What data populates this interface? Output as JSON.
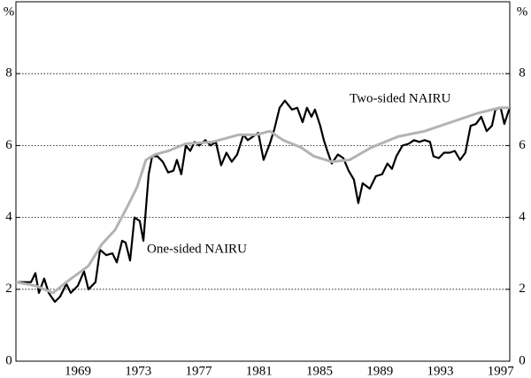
{
  "chart_data": {
    "type": "line",
    "y_unit": "%",
    "xlim": [
      1965.4,
      1998.1
    ],
    "ylim": [
      0,
      10
    ],
    "yticks": [
      0,
      2,
      4,
      6,
      8
    ],
    "xticks": [
      {
        "value": 1969.5,
        "label": "1969"
      },
      {
        "value": 1973.5,
        "label": "1973"
      },
      {
        "value": 1977.5,
        "label": "1977"
      },
      {
        "value": 1981.5,
        "label": "1981"
      },
      {
        "value": 1985.5,
        "label": "1985"
      },
      {
        "value": 1989.5,
        "label": "1989"
      },
      {
        "value": 1993.5,
        "label": "1993"
      },
      {
        "value": 1997.5,
        "label": "1997"
      }
    ],
    "grid": true,
    "annotations": [
      "Two-sided NAIRU",
      "One-sided NAIRU"
    ],
    "series": [
      {
        "color": "#000000",
        "x": [
          1965.4,
          1966.4,
          1966.69,
          1966.92,
          1967.27,
          1967.57,
          1967.98,
          1968.33,
          1968.74,
          1969.03,
          1969.5,
          1969.91,
          1970.2,
          1970.67,
          1970.97,
          1971.38,
          1971.79,
          1972.08,
          1972.43,
          1972.66,
          1972.96,
          1973.25,
          1973.6,
          1973.84,
          1974.19,
          1974.42,
          1974.77,
          1975.12,
          1975.48,
          1975.83,
          1976.06,
          1976.35,
          1976.65,
          1976.94,
          1977.23,
          1977.53,
          1977.94,
          1978.29,
          1978.64,
          1978.99,
          1979.34,
          1979.69,
          1980.05,
          1980.46,
          1980.75,
          1981.1,
          1981.45,
          1981.8,
          1982.21,
          1982.51,
          1982.86,
          1983.21,
          1983.68,
          1984.03,
          1984.38,
          1984.67,
          1984.97,
          1985.2,
          1985.55,
          1985.79,
          1986.02,
          1986.31,
          1986.72,
          1987.08,
          1987.43,
          1987.78,
          1988.07,
          1988.36,
          1988.83,
          1989.24,
          1989.65,
          1990.0,
          1990.3,
          1990.59,
          1991.0,
          1991.41,
          1991.76,
          1992.11,
          1992.46,
          1992.82,
          1993.05,
          1993.4,
          1993.75,
          1994.11,
          1994.46,
          1994.81,
          1995.16,
          1995.51,
          1995.86,
          1996.21,
          1996.57,
          1996.92,
          1997.15,
          1997.5,
          1997.74,
          1998.09
        ],
        "values": [
          2.2,
          2.2,
          2.45,
          1.9,
          2.3,
          1.9,
          1.65,
          1.8,
          2.15,
          1.9,
          2.1,
          2.5,
          2.0,
          2.2,
          3.1,
          2.95,
          3.0,
          2.75,
          3.35,
          3.3,
          2.8,
          4.0,
          3.9,
          3.35,
          5.2,
          5.7,
          5.7,
          5.55,
          5.25,
          5.3,
          5.6,
          5.2,
          6.0,
          5.85,
          6.1,
          6.0,
          6.15,
          6.0,
          6.1,
          5.45,
          5.8,
          5.55,
          5.75,
          6.3,
          6.15,
          6.25,
          6.35,
          5.6,
          6.05,
          6.45,
          7.05,
          7.25,
          7.0,
          7.05,
          6.65,
          7.05,
          6.8,
          7.0,
          6.55,
          6.15,
          5.85,
          5.5,
          5.75,
          5.65,
          5.3,
          5.05,
          4.4,
          4.95,
          4.8,
          5.15,
          5.2,
          5.5,
          5.35,
          5.7,
          6.0,
          6.05,
          6.15,
          6.1,
          6.15,
          6.1,
          5.7,
          5.65,
          5.8,
          5.8,
          5.85,
          5.6,
          5.8,
          6.55,
          6.6,
          6.8,
          6.4,
          6.55,
          7.0,
          7.05,
          6.6,
          7.05
        ]
      },
      {
        "color": "#b3b3b3",
        "x": [
          1965.4,
          1966.69,
          1967.86,
          1968.74,
          1970.2,
          1971.08,
          1971.96,
          1972.84,
          1973.43,
          1974.01,
          1974.6,
          1975.48,
          1976.65,
          1978.41,
          1980.16,
          1981.33,
          1982.21,
          1983.09,
          1984.26,
          1985.14,
          1986.31,
          1987.49,
          1988.95,
          1990.71,
          1992.46,
          1994.22,
          1995.98,
          1997.45,
          1998.09
        ],
        "values": [
          2.2,
          2.1,
          1.9,
          2.2,
          2.65,
          3.25,
          3.65,
          4.35,
          4.85,
          5.6,
          5.75,
          5.85,
          6.05,
          6.1,
          6.3,
          6.3,
          6.4,
          6.15,
          5.95,
          5.7,
          5.55,
          5.6,
          5.95,
          6.25,
          6.4,
          6.65,
          6.9,
          7.05,
          7.05
        ]
      }
    ]
  }
}
